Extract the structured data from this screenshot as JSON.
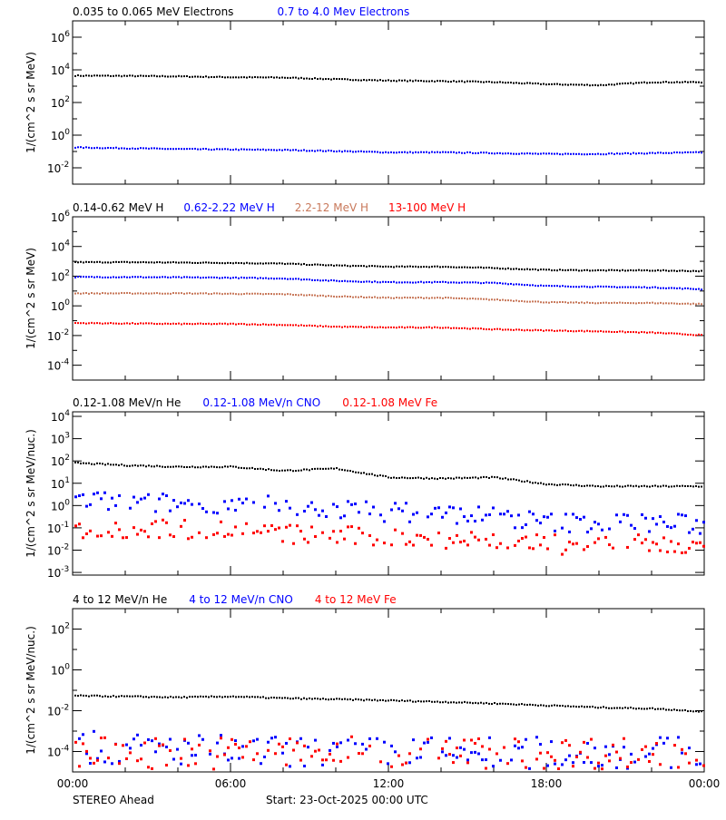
{
  "colors": {
    "black": "#000000",
    "blue": "#0000ff",
    "brown": "#c8785a",
    "red": "#ff0000"
  },
  "footer": {
    "left": "STEREO Ahead",
    "center": "Start: 23-Oct-2025 00:00 UTC"
  },
  "chart_data": [
    {
      "type": "scatter",
      "yscale": "log",
      "ylim": [
        0.001,
        10000000
      ],
      "ylabel": "1/(cm^2 s sr MeV)",
      "yticks": [
        {
          "base": "10",
          "exp": "6",
          "v": 1000000.0
        },
        {
          "base": "10",
          "exp": "4",
          "v": 10000.0
        },
        {
          "base": "10",
          "exp": "2",
          "v": 100.0
        },
        {
          "base": "10",
          "exp": "0",
          "v": 1
        },
        {
          "base": "10",
          "exp": "-2",
          "v": 0.01
        }
      ],
      "xticks": [
        "00:00",
        "06:00",
        "12:00",
        "18:00",
        "00:00"
      ],
      "x_hours": [
        0,
        2,
        4,
        6,
        8,
        10,
        12,
        14,
        16,
        18,
        20,
        22,
        24
      ],
      "series": [
        {
          "name": "0.035 to 0.065 MeV Electrons",
          "color": "black",
          "values": [
            5000,
            4800,
            4500,
            4000,
            3800,
            3000,
            2500,
            2300,
            2000,
            1500,
            1300,
            2000,
            2000
          ]
        },
        {
          "name": "0.7 to 4.0 Mev Electrons",
          "color": "blue",
          "values": [
            0.2,
            0.18,
            0.16,
            0.15,
            0.14,
            0.12,
            0.1,
            0.1,
            0.09,
            0.08,
            0.08,
            0.09,
            0.1
          ]
        }
      ]
    },
    {
      "type": "scatter",
      "yscale": "log",
      "ylim": [
        1e-05,
        1000000
      ],
      "ylabel": "1/(cm^2 s sr MeV)",
      "yticks": [
        {
          "base": "10",
          "exp": "6",
          "v": 1000000.0
        },
        {
          "base": "10",
          "exp": "4",
          "v": 10000.0
        },
        {
          "base": "10",
          "exp": "2",
          "v": 100.0
        },
        {
          "base": "10",
          "exp": "0",
          "v": 1
        },
        {
          "base": "10",
          "exp": "-2",
          "v": 0.01
        },
        {
          "base": "10",
          "exp": "-4",
          "v": 0.0001
        }
      ],
      "xticks": [
        "00:00",
        "06:00",
        "12:00",
        "18:00",
        "00:00"
      ],
      "x_hours": [
        0,
        2,
        4,
        6,
        8,
        10,
        12,
        14,
        16,
        18,
        20,
        22,
        24
      ],
      "series": [
        {
          "name": "0.14-0.62 MeV H",
          "color": "black",
          "values": [
            1000,
            1000,
            950,
            900,
            800,
            600,
            500,
            500,
            400,
            300,
            280,
            280,
            250
          ]
        },
        {
          "name": "0.62-2.22 MeV H",
          "color": "blue",
          "values": [
            100,
            100,
            95,
            90,
            80,
            55,
            45,
            45,
            40,
            25,
            22,
            20,
            15
          ]
        },
        {
          "name": "2.2-12 MeV H",
          "color": "brown",
          "values": [
            8,
            8,
            8,
            7.5,
            7,
            5,
            4,
            4,
            3,
            2,
            1.8,
            1.8,
            1.5
          ]
        },
        {
          "name": "13-100 MeV H",
          "color": "red",
          "values": [
            0.08,
            0.075,
            0.07,
            0.07,
            0.06,
            0.045,
            0.04,
            0.04,
            0.03,
            0.025,
            0.022,
            0.018,
            0.012
          ]
        }
      ]
    },
    {
      "type": "scatter",
      "yscale": "log",
      "ylim": [
        0.00076,
        16000
      ],
      "ylabel": "1/(cm^2 s sr MeV/nuc.)",
      "yticks": [
        {
          "base": "10",
          "exp": "4",
          "v": 10000.0
        },
        {
          "base": "10",
          "exp": "3",
          "v": 1000.0
        },
        {
          "base": "10",
          "exp": "2",
          "v": 100.0
        },
        {
          "base": "10",
          "exp": "1",
          "v": 10
        },
        {
          "base": "10",
          "exp": "0",
          "v": 1
        },
        {
          "base": "10",
          "exp": "-1",
          "v": 0.1
        },
        {
          "base": "10",
          "exp": "-2",
          "v": 0.01
        },
        {
          "base": "10",
          "exp": "-3",
          "v": 0.001
        }
      ],
      "xticks": [
        "00:00",
        "06:00",
        "12:00",
        "18:00",
        "00:00"
      ],
      "x_hours": [
        0,
        2,
        4,
        6,
        8,
        10,
        12,
        14,
        16,
        18,
        20,
        22,
        24
      ],
      "series": [
        {
          "name": "0.12-1.08 MeV/n He",
          "color": "black",
          "values": [
            90,
            70,
            60,
            60,
            40,
            50,
            20,
            18,
            20,
            10,
            8,
            8,
            8
          ]
        },
        {
          "name": "0.12-1.08 MeV/n CNO",
          "color": "blue",
          "values": [
            2,
            1.6,
            1.4,
            1.5,
            1,
            0.8,
            0.6,
            0.5,
            0.4,
            0.2,
            0.2,
            0.2,
            0.15
          ]
        },
        {
          "name": "0.12-1.08 MeV Fe",
          "color": "red",
          "values": [
            0.1,
            0.1,
            0.1,
            0.1,
            0.06,
            0.05,
            0.04,
            0.04,
            0.03,
            0.02,
            0.02,
            0.02,
            0.015
          ]
        }
      ]
    },
    {
      "type": "scatter",
      "yscale": "log",
      "ylim": [
        1e-05,
        1000
      ],
      "ylabel": "1/(cm^2 s sr MeV/nuc.)",
      "yticks": [
        {
          "base": "10",
          "exp": "2",
          "v": 100
        },
        {
          "base": "10",
          "exp": "0",
          "v": 1
        },
        {
          "base": "10",
          "exp": "-2",
          "v": 0.01
        },
        {
          "base": "10",
          "exp": "-4",
          "v": 0.0001
        }
      ],
      "xticks": [
        "00:00",
        "06:00",
        "12:00",
        "18:00",
        "00:00"
      ],
      "x_hours": [
        0,
        2,
        4,
        6,
        8,
        10,
        12,
        14,
        16,
        18,
        20,
        22,
        24
      ],
      "series": [
        {
          "name": "4 to 12 MeV/n He",
          "color": "black",
          "values": [
            0.06,
            0.055,
            0.05,
            0.055,
            0.045,
            0.04,
            0.035,
            0.03,
            0.025,
            0.02,
            0.016,
            0.014,
            0.01
          ]
        },
        {
          "name": "4 to 12 MeV/n CNO",
          "color": "blue",
          "values": [
            0.0002,
            0.00015,
            0.00015,
            0.00012,
            0.0001,
            0.0001,
            0.0001,
            0.0001,
            0.0001,
            0.0001,
            0.0001,
            0.0001,
            0.0001
          ]
        },
        {
          "name": "4 to 12 MeV Fe",
          "color": "red",
          "values": [
            0.0001,
            0.0001,
            0.0001,
            0.0001,
            0.0001,
            0.0001,
            0.0001,
            0.0001,
            0.0001,
            0.0001,
            0.0001,
            0.0001,
            0.0001
          ]
        }
      ]
    }
  ]
}
